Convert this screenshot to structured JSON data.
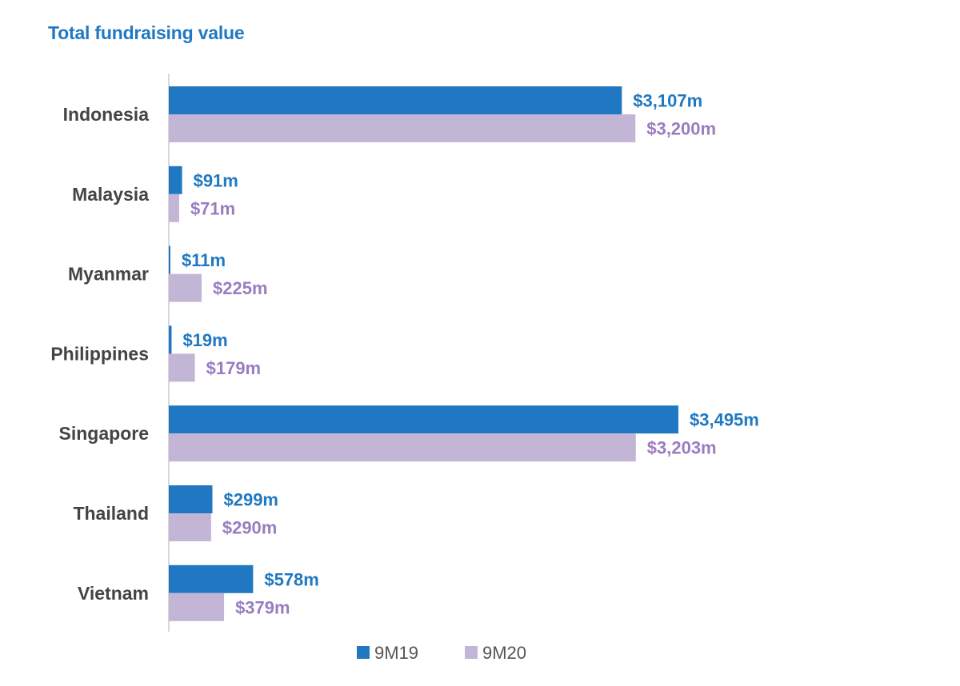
{
  "chart_data": {
    "type": "bar",
    "orientation": "horizontal",
    "title": "Total fundraising value",
    "categories": [
      "Indonesia",
      "Malaysia",
      "Myanmar",
      "Philippines",
      "Singapore",
      "Thailand",
      "Vietnam"
    ],
    "series": [
      {
        "name": "9M19",
        "color": "#1f78c1",
        "values": [
          3107,
          91,
          11,
          19,
          3495,
          299,
          578
        ],
        "labels": [
          "$3,107m",
          "$91m",
          "$11m",
          "$19m",
          "$3,495m",
          "$299m",
          "$578m"
        ]
      },
      {
        "name": "9M20",
        "color": "#c3b5d6",
        "label_color": "#9a7cc0",
        "values": [
          3200,
          71,
          225,
          179,
          3203,
          290,
          379
        ],
        "labels": [
          "$3,200m",
          "$71m",
          "$225m",
          "$179m",
          "$3,203m",
          "$290m",
          "$379m"
        ]
      }
    ],
    "xlabel": "",
    "ylabel": "",
    "xlim": [
      0,
      3495
    ],
    "grid": false,
    "legend_position": "bottom-center",
    "title_color": "#1f78c1",
    "category_label_color": "#444444",
    "axis_color": "#cccccc"
  }
}
